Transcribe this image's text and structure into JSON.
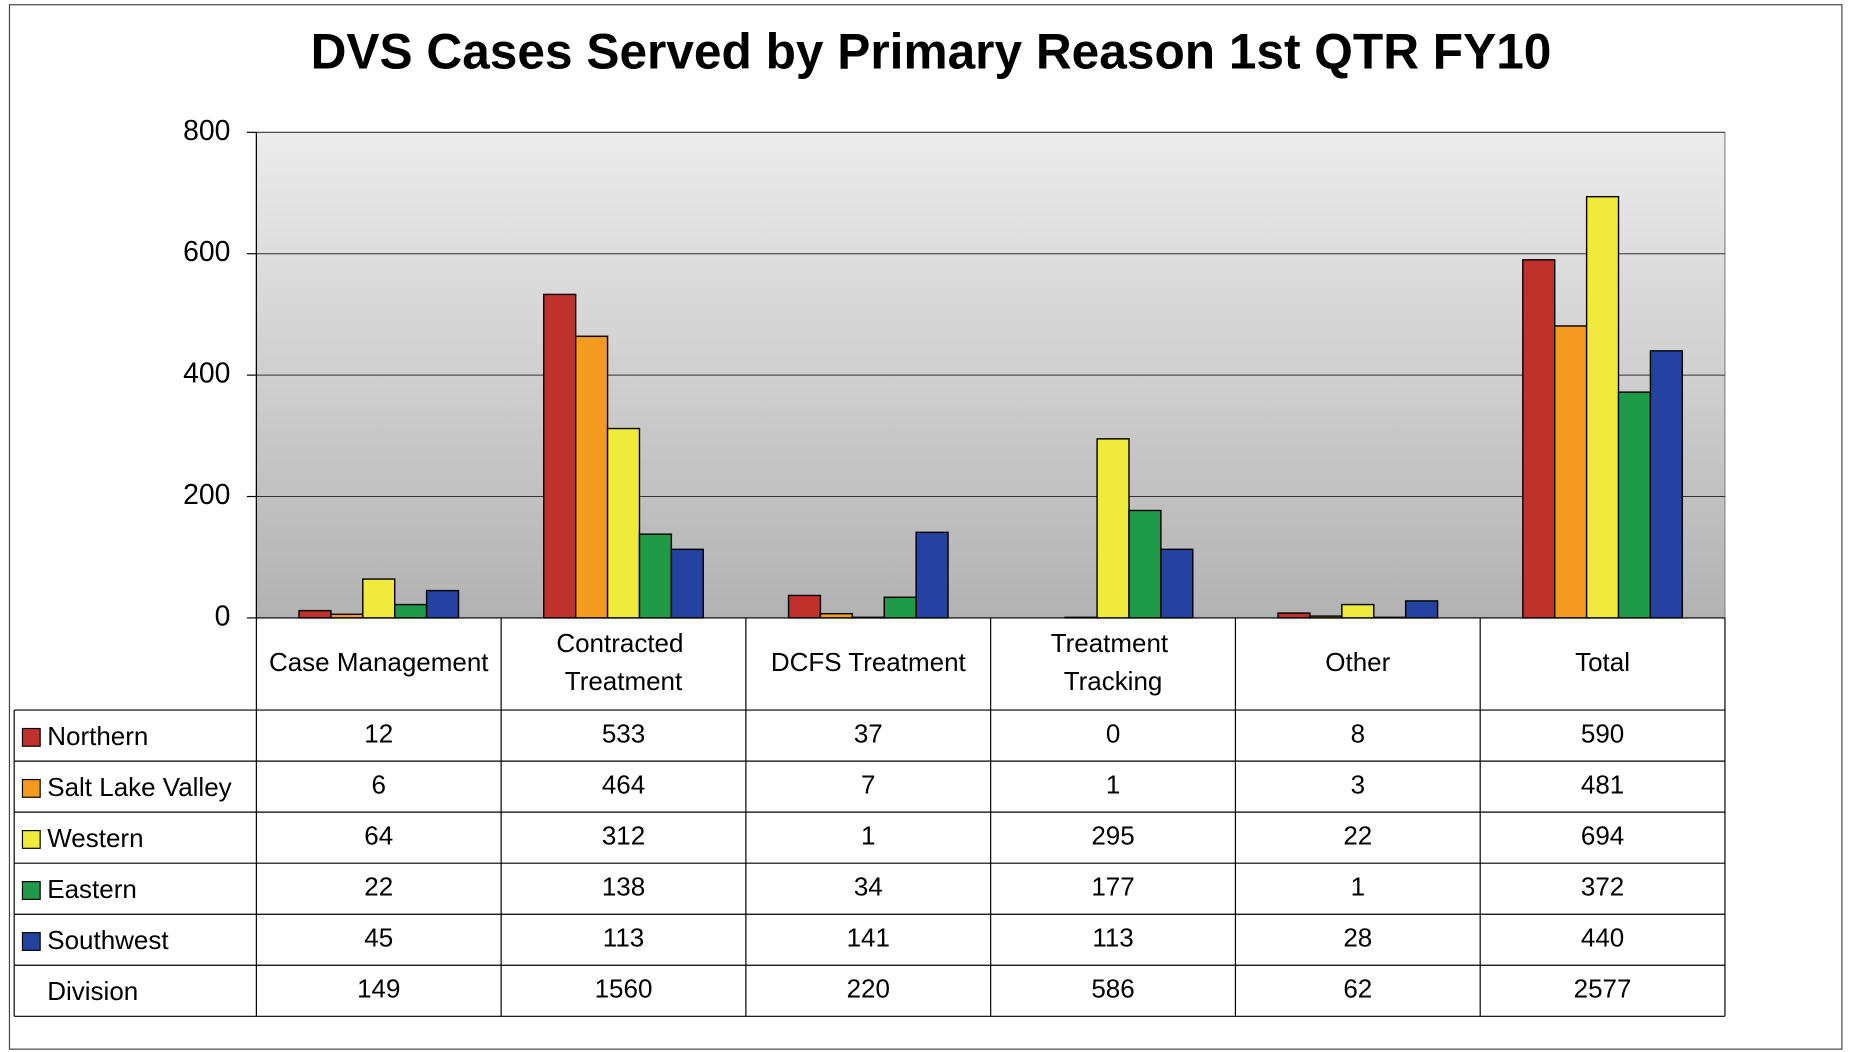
{
  "chart_data": {
    "type": "bar",
    "title": "DVS Cases Served by Primary Reason 1st QTR FY10",
    "categories": [
      "Case Management",
      "Contracted Treatment",
      "DCFS Treatment",
      "Treatment Tracking",
      "Other",
      "Total"
    ],
    "series": [
      {
        "name": "Northern",
        "color": "#c0312b",
        "values": [
          12,
          533,
          37,
          0,
          8,
          590
        ]
      },
      {
        "name": "Salt Lake Valley",
        "color": "#f39a1f",
        "values": [
          6,
          464,
          7,
          1,
          3,
          481
        ]
      },
      {
        "name": "Western",
        "color": "#f0ea3c",
        "values": [
          64,
          312,
          1,
          295,
          22,
          694
        ]
      },
      {
        "name": "Eastern",
        "color": "#1f9a48",
        "values": [
          22,
          138,
          34,
          177,
          1,
          372
        ]
      },
      {
        "name": "Southwest",
        "color": "#2442a1",
        "values": [
          45,
          113,
          141,
          113,
          28,
          440
        ]
      }
    ],
    "division": {
      "name": "Division",
      "values": [
        149,
        1560,
        220,
        586,
        62,
        2577
      ]
    },
    "ylim": [
      0,
      800
    ],
    "yticks": [
      0,
      200,
      400,
      600,
      800
    ],
    "grid": true
  }
}
